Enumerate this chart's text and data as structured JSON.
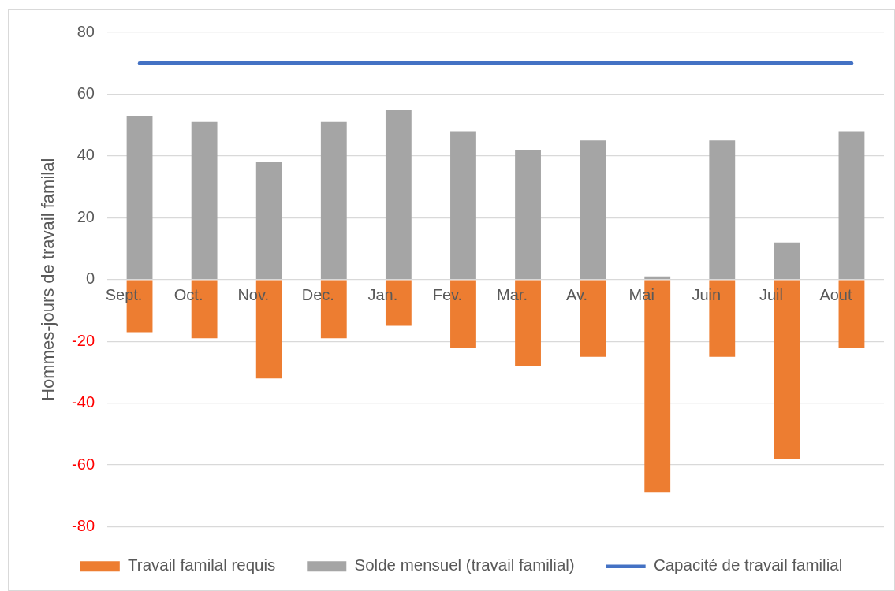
{
  "chart_data": {
    "type": "bar",
    "stacked": true,
    "categories": [
      "Sept.",
      "Oct.",
      "Nov.",
      "Dec.",
      "Jan.",
      "Fev.",
      "Mar.",
      "Av.",
      "Mai",
      "Juin",
      "Juil",
      "Aout"
    ],
    "ylabel": "Hommes-jours de travail familal",
    "ylim": [
      -80,
      80
    ],
    "yticks": [
      -80,
      -60,
      -40,
      -20,
      0,
      20,
      40,
      60,
      80
    ],
    "grid": "y",
    "legend": "bottom",
    "marker": "none",
    "series": [
      {
        "name": "Travail familal requis",
        "color": "#ed7d31",
        "values": [
          -17,
          -19,
          -32,
          -19,
          -15,
          -22,
          -28,
          -25,
          -69,
          -25,
          -58,
          -22
        ]
      },
      {
        "name": "Solde mensuel (travail familial)",
        "color": "#a5a5a5",
        "values": [
          53,
          51,
          38,
          51,
          55,
          48,
          42,
          45,
          1,
          45,
          12,
          48
        ]
      },
      {
        "name": "Capacité de travail familial",
        "type": "line",
        "color": "#4472c4",
        "values": [
          70,
          70,
          70,
          70,
          70,
          70,
          70,
          70,
          70,
          70,
          70,
          70
        ]
      }
    ]
  }
}
